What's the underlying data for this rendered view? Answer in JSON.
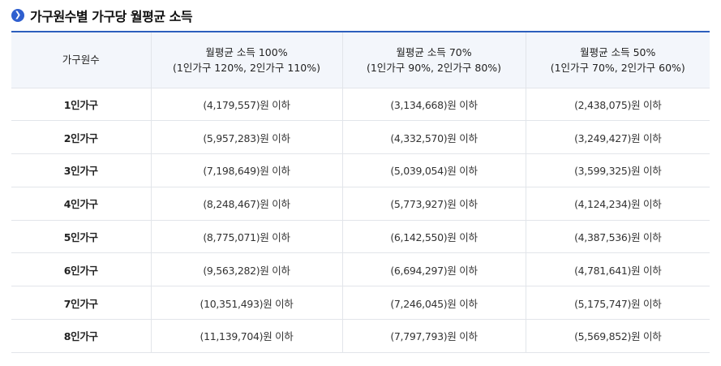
{
  "title": "가구원수별 가구당 월평균 소득",
  "title_icon": "chevron-right-icon",
  "accent_color": "#2c5fbd",
  "table": {
    "headers": [
      {
        "line1": "가구원수",
        "line2": ""
      },
      {
        "line1": "월평균 소득 100%",
        "line2": "(1인가구 120%, 2인가구 110%)"
      },
      {
        "line1": "월평균 소득 70%",
        "line2": "(1인가구 90%, 2인가구 80%)"
      },
      {
        "line1": "월평균 소득 50%",
        "line2": "(1인가구 70%, 2인가구 60%)"
      }
    ],
    "rows": [
      [
        "1인가구",
        "(4,179,557)원 이하",
        "(3,134,668)원 이하",
        "(2,438,075)원 이하"
      ],
      [
        "2인가구",
        "(5,957,283)원 이하",
        "(4,332,570)원 이하",
        "(3,249,427)원 이하"
      ],
      [
        "3인가구",
        "(7,198,649)원 이하",
        "(5,039,054)원 이하",
        "(3,599,325)원 이하"
      ],
      [
        "4인가구",
        "(8,248,467)원 이하",
        "(5,773,927)원 이하",
        "(4,124,234)원 이하"
      ],
      [
        "5인가구",
        "(8,775,071)원 이하",
        "(6,142,550)원 이하",
        "(4,387,536)원 이하"
      ],
      [
        "6인가구",
        "(9,563,282)원 이하",
        "(6,694,297)원 이하",
        "(4,781,641)원 이하"
      ],
      [
        "7인가구",
        "(10,351,493)원 이하",
        "(7,246,045)원 이하",
        "(5,175,747)원 이하"
      ],
      [
        "8인가구",
        "(11,139,704)원 이하",
        "(7,797,793)원 이하",
        "(5,569,852)원 이하"
      ]
    ]
  }
}
